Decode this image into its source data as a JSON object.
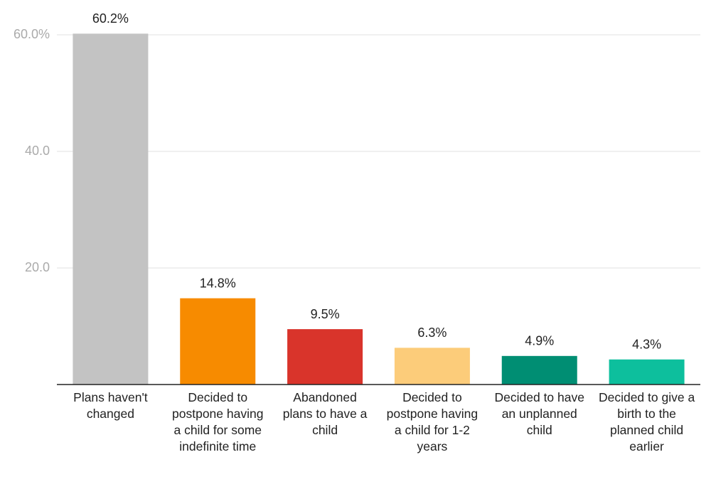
{
  "chart_data": {
    "type": "bar",
    "categories": [
      "Plans haven't changed",
      "Decided to postpone having a child for some indefinite time",
      "Abandoned plans to have a child",
      "Decided to postpone having a child for 1-2 years",
      "Decided to have an unplanned child",
      "Decided to give a birth to the planned child earlier"
    ],
    "values": [
      60.2,
      14.8,
      9.5,
      6.3,
      4.9,
      4.3
    ],
    "value_labels": [
      "60.2%",
      "14.8%",
      "9.5%",
      "6.3%",
      "4.9%",
      "4.3%"
    ],
    "colors": [
      "#c3c3c3",
      "#f78b00",
      "#d9342b",
      "#fccc7a",
      "#008e73",
      "#0dbf9d"
    ],
    "ylim": [
      0,
      60
    ],
    "yticks": [
      {
        "value": 20,
        "label": "20.0"
      },
      {
        "value": 40,
        "label": "40.0"
      },
      {
        "value": 60,
        "label": "60.0%"
      }
    ],
    "grid": true
  }
}
